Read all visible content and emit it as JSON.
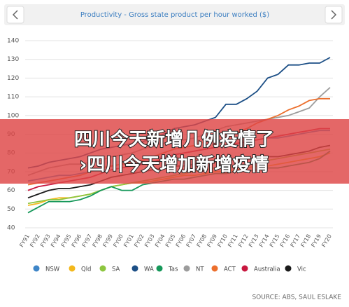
{
  "chart_data": {
    "type": "line",
    "title": "Productivity - Gross state product per hour worked ($)",
    "source": "SOURCE: ABS, SAUL ESLAKE",
    "categories": [
      "FY91",
      "FY92",
      "FY93",
      "FY94",
      "FY95",
      "FY96",
      "FY97",
      "FY98",
      "FY99",
      "FY00",
      "FY01",
      "FY02",
      "FY03",
      "FY04",
      "FY05",
      "FY06",
      "FY07",
      "FY08",
      "FY09",
      "FY10",
      "FY11",
      "FY12",
      "FY13",
      "FY14",
      "FY15",
      "FY16",
      "FY17",
      "FY18",
      "FY19",
      "FY20"
    ],
    "ylim": [
      40,
      140
    ],
    "yticks": [
      40,
      50,
      60,
      70,
      80,
      90,
      100,
      110,
      120,
      130,
      140
    ],
    "grid": true,
    "series": [
      {
        "name": "NSW",
        "color": "#3f86c8",
        "values": [
          65,
          66,
          67,
          68,
          68,
          69,
          70,
          72,
          73,
          74,
          75,
          76,
          77,
          78,
          79,
          80,
          81,
          82,
          83,
          84,
          85,
          86,
          87,
          88,
          88,
          89,
          90,
          91,
          92,
          92
        ]
      },
      {
        "name": "Qld",
        "color": "#f3b81c",
        "values": [
          52,
          53,
          55,
          56,
          56,
          57,
          58,
          60,
          62,
          63,
          64,
          64,
          65,
          66,
          67,
          68,
          68,
          69,
          70,
          70,
          71,
          72,
          73,
          73,
          74,
          75,
          76,
          77,
          78,
          80
        ]
      },
      {
        "name": "SA",
        "color": "#8dc63f",
        "values": [
          53,
          54,
          55,
          55,
          56,
          57,
          58,
          60,
          62,
          63,
          64,
          65,
          66,
          67,
          68,
          69,
          70,
          71,
          72,
          72,
          73,
          74,
          75,
          76,
          77,
          78,
          79,
          80,
          81,
          82
        ]
      },
      {
        "name": "WA",
        "color": "#1c4f86",
        "values": [
          72,
          73,
          75,
          76,
          77,
          78,
          80,
          82,
          83,
          84,
          85,
          86,
          88,
          90,
          93,
          94,
          95,
          97,
          99,
          106,
          106,
          109,
          113,
          120,
          122,
          127,
          127,
          128,
          128,
          131
        ]
      },
      {
        "name": "Tas",
        "color": "#16985a",
        "values": [
          48,
          51,
          54,
          54,
          54,
          55,
          57,
          60,
          62,
          60,
          60,
          63,
          64,
          65,
          66,
          66,
          67,
          68,
          69,
          69,
          70,
          70,
          71,
          72,
          72,
          73,
          74,
          75,
          77,
          81
        ]
      },
      {
        "name": "NT",
        "color": "#9c9c9c",
        "values": [
          68,
          70,
          72,
          73,
          74,
          74,
          75,
          76,
          78,
          79,
          80,
          82,
          84,
          85,
          86,
          87,
          88,
          90,
          92,
          94,
          95,
          96,
          97,
          98,
          99,
          100,
          102,
          104,
          110,
          115
        ]
      },
      {
        "name": "ACT",
        "color": "#ec6f2d",
        "values": [
          63,
          64,
          65,
          66,
          67,
          68,
          70,
          72,
          73,
          74,
          75,
          76,
          78,
          80,
          82,
          83,
          84,
          86,
          88,
          90,
          91,
          93,
          96,
          98,
          100,
          103,
          105,
          108,
          109,
          109
        ]
      },
      {
        "name": "Australia",
        "color": "#c8173f",
        "values": [
          60,
          62,
          63,
          64,
          65,
          66,
          67,
          69,
          71,
          72,
          73,
          74,
          75,
          77,
          79,
          80,
          81,
          82,
          83,
          84,
          85,
          86,
          87,
          88,
          89,
          90,
          91,
          92,
          93,
          93
        ]
      },
      {
        "name": "Vic",
        "color": "#1a1a1a",
        "values": [
          56,
          58,
          60,
          61,
          61,
          62,
          63,
          65,
          67,
          68,
          69,
          70,
          71,
          72,
          73,
          73,
          74,
          75,
          75,
          76,
          76,
          77,
          77,
          78,
          78,
          79,
          80,
          81,
          83,
          84
        ]
      }
    ]
  },
  "overlay": {
    "lines": [
      "四川今天新增几例疫情了",
      "›四川今天增加新增疫情"
    ]
  }
}
